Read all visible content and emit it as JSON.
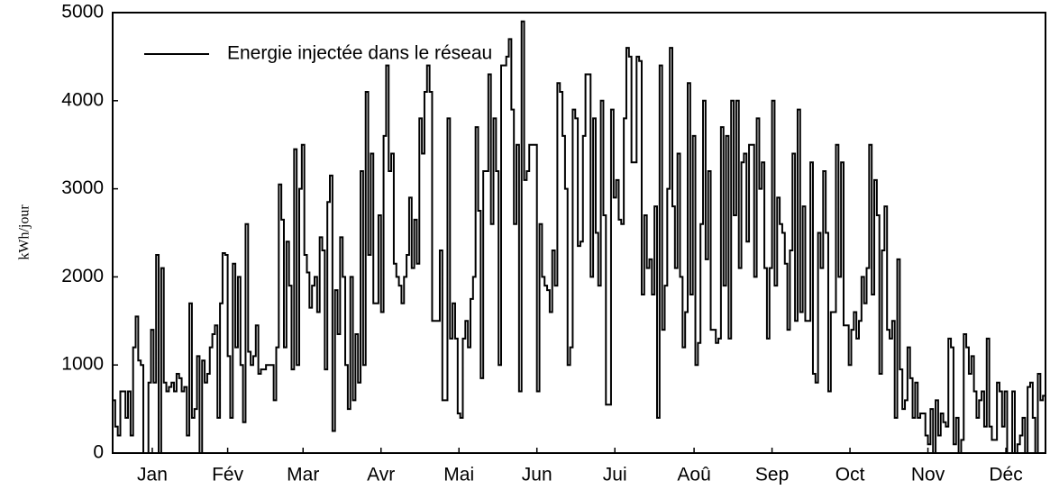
{
  "chart_data": {
    "type": "step",
    "ylabel": "kWh/jour",
    "ylim": [
      0,
      5000
    ],
    "yticks": [
      0,
      1000,
      2000,
      3000,
      4000,
      5000
    ],
    "xlim": [
      0,
      365
    ],
    "xticks": [
      {
        "value": 15.5,
        "label": "Jan"
      },
      {
        "value": 45,
        "label": "Fév"
      },
      {
        "value": 74.5,
        "label": "Mar"
      },
      {
        "value": 105,
        "label": "Avr"
      },
      {
        "value": 135.5,
        "label": "Mai"
      },
      {
        "value": 166,
        "label": "Jun"
      },
      {
        "value": 196.5,
        "label": "Jui"
      },
      {
        "value": 227.5,
        "label": "Aoû"
      },
      {
        "value": 258,
        "label": "Sep"
      },
      {
        "value": 288.5,
        "label": "Oct"
      },
      {
        "value": 319,
        "label": "Nov"
      },
      {
        "value": 349.5,
        "label": "Déc"
      }
    ],
    "legend": "upper left",
    "series": [
      {
        "name": "Energie injectée dans le réseau",
        "color": "#000000",
        "values": [
          600,
          300,
          200,
          700,
          700,
          400,
          700,
          200,
          1200,
          1550,
          1050,
          1000,
          0,
          0,
          800,
          1400,
          800,
          2250,
          0,
          2100,
          800,
          700,
          750,
          800,
          700,
          900,
          850,
          700,
          750,
          200,
          1700,
          400,
          500,
          1100,
          0,
          1050,
          800,
          900,
          1200,
          1350,
          1450,
          400,
          1700,
          2270,
          2250,
          1100,
          400,
          2150,
          1200,
          2000,
          1000,
          350,
          2600,
          1150,
          1000,
          1100,
          1450,
          900,
          950,
          950,
          1000,
          1000,
          1000,
          600,
          1200,
          3050,
          2650,
          1200,
          2400,
          1900,
          950,
          3450,
          1000,
          3000,
          3500,
          2250,
          2050,
          1650,
          1900,
          2000,
          1600,
          2450,
          2300,
          950,
          2850,
          3150,
          250,
          1850,
          1350,
          2450,
          2000,
          1000,
          500,
          2000,
          600,
          1350,
          800,
          3200,
          1000,
          4100,
          2250,
          3400,
          1700,
          1700,
          2700,
          1600,
          3600,
          4400,
          3200,
          3400,
          2150,
          2000,
          1900,
          1700,
          2000,
          2250,
          2900,
          2100,
          2650,
          2150,
          3800,
          3400,
          4100,
          4400,
          4100,
          1500,
          1500,
          1500,
          2300,
          600,
          600,
          3800,
          1300,
          1700,
          1300,
          450,
          400,
          1300,
          1500,
          1200,
          1750,
          2000,
          3700,
          2750,
          850,
          3200,
          3200,
          4300,
          2600,
          3800,
          3200,
          1000,
          4400,
          4400,
          4500,
          4700,
          3900,
          2600,
          3500,
          700,
          4900,
          3100,
          3200,
          3500,
          3500,
          3500,
          700,
          2600,
          2000,
          1900,
          1850,
          1600,
          2300,
          1900,
          4200,
          4100,
          3600,
          3000,
          1000,
          1200,
          3900,
          3800,
          2350,
          2400,
          3600,
          4300,
          4300,
          2000,
          3800,
          2500,
          1900,
          4000,
          2700,
          550,
          550,
          3900,
          2900,
          3100,
          2650,
          2600,
          3800,
          4600,
          4500,
          3300,
          3300,
          4500,
          4450,
          1800,
          2700,
          2100,
          2200,
          1800,
          2800,
          400,
          4400,
          1400,
          1900,
          3000,
          4600,
          2800,
          2100,
          3400,
          2000,
          1200,
          1600,
          4200,
          1800,
          3600,
          1000,
          1250,
          2600,
          4000,
          2200,
          3200,
          1400,
          1400,
          1250,
          1300,
          3700,
          1900,
          3600,
          1300,
          4000,
          2700,
          4000,
          2100,
          3300,
          3400,
          2400,
          3500,
          3500,
          2000,
          3800,
          3000,
          3300,
          2100,
          1300,
          2100,
          4000,
          1900,
          2900,
          2600,
          2500,
          2150,
          1400,
          2300,
          3400,
          1500,
          3900,
          1600,
          2800,
          1500,
          1500,
          3300,
          900,
          800,
          2500,
          2100,
          3200,
          2500,
          700,
          1600,
          1600,
          3500,
          2000,
          3300,
          1450,
          1450,
          1000,
          1400,
          1600,
          1300,
          1500,
          2000,
          1700,
          2100,
          3500,
          1800,
          3100,
          2700,
          900,
          2300,
          2800,
          1400,
          1300,
          1500,
          400,
          2200,
          950,
          500,
          600,
          1200,
          850,
          400,
          800,
          400,
          450,
          450,
          200,
          100,
          500,
          0,
          600,
          200,
          450,
          350,
          300,
          1300,
          1200,
          100,
          400,
          0,
          150,
          1350,
          1200,
          900,
          1100,
          700,
          400,
          600,
          700,
          300,
          1300,
          300,
          150,
          150,
          800,
          700,
          300,
          700,
          0,
          0,
          700,
          0,
          100,
          200,
          400,
          0,
          750,
          800,
          400,
          0,
          900,
          600,
          650
        ]
      }
    ]
  }
}
